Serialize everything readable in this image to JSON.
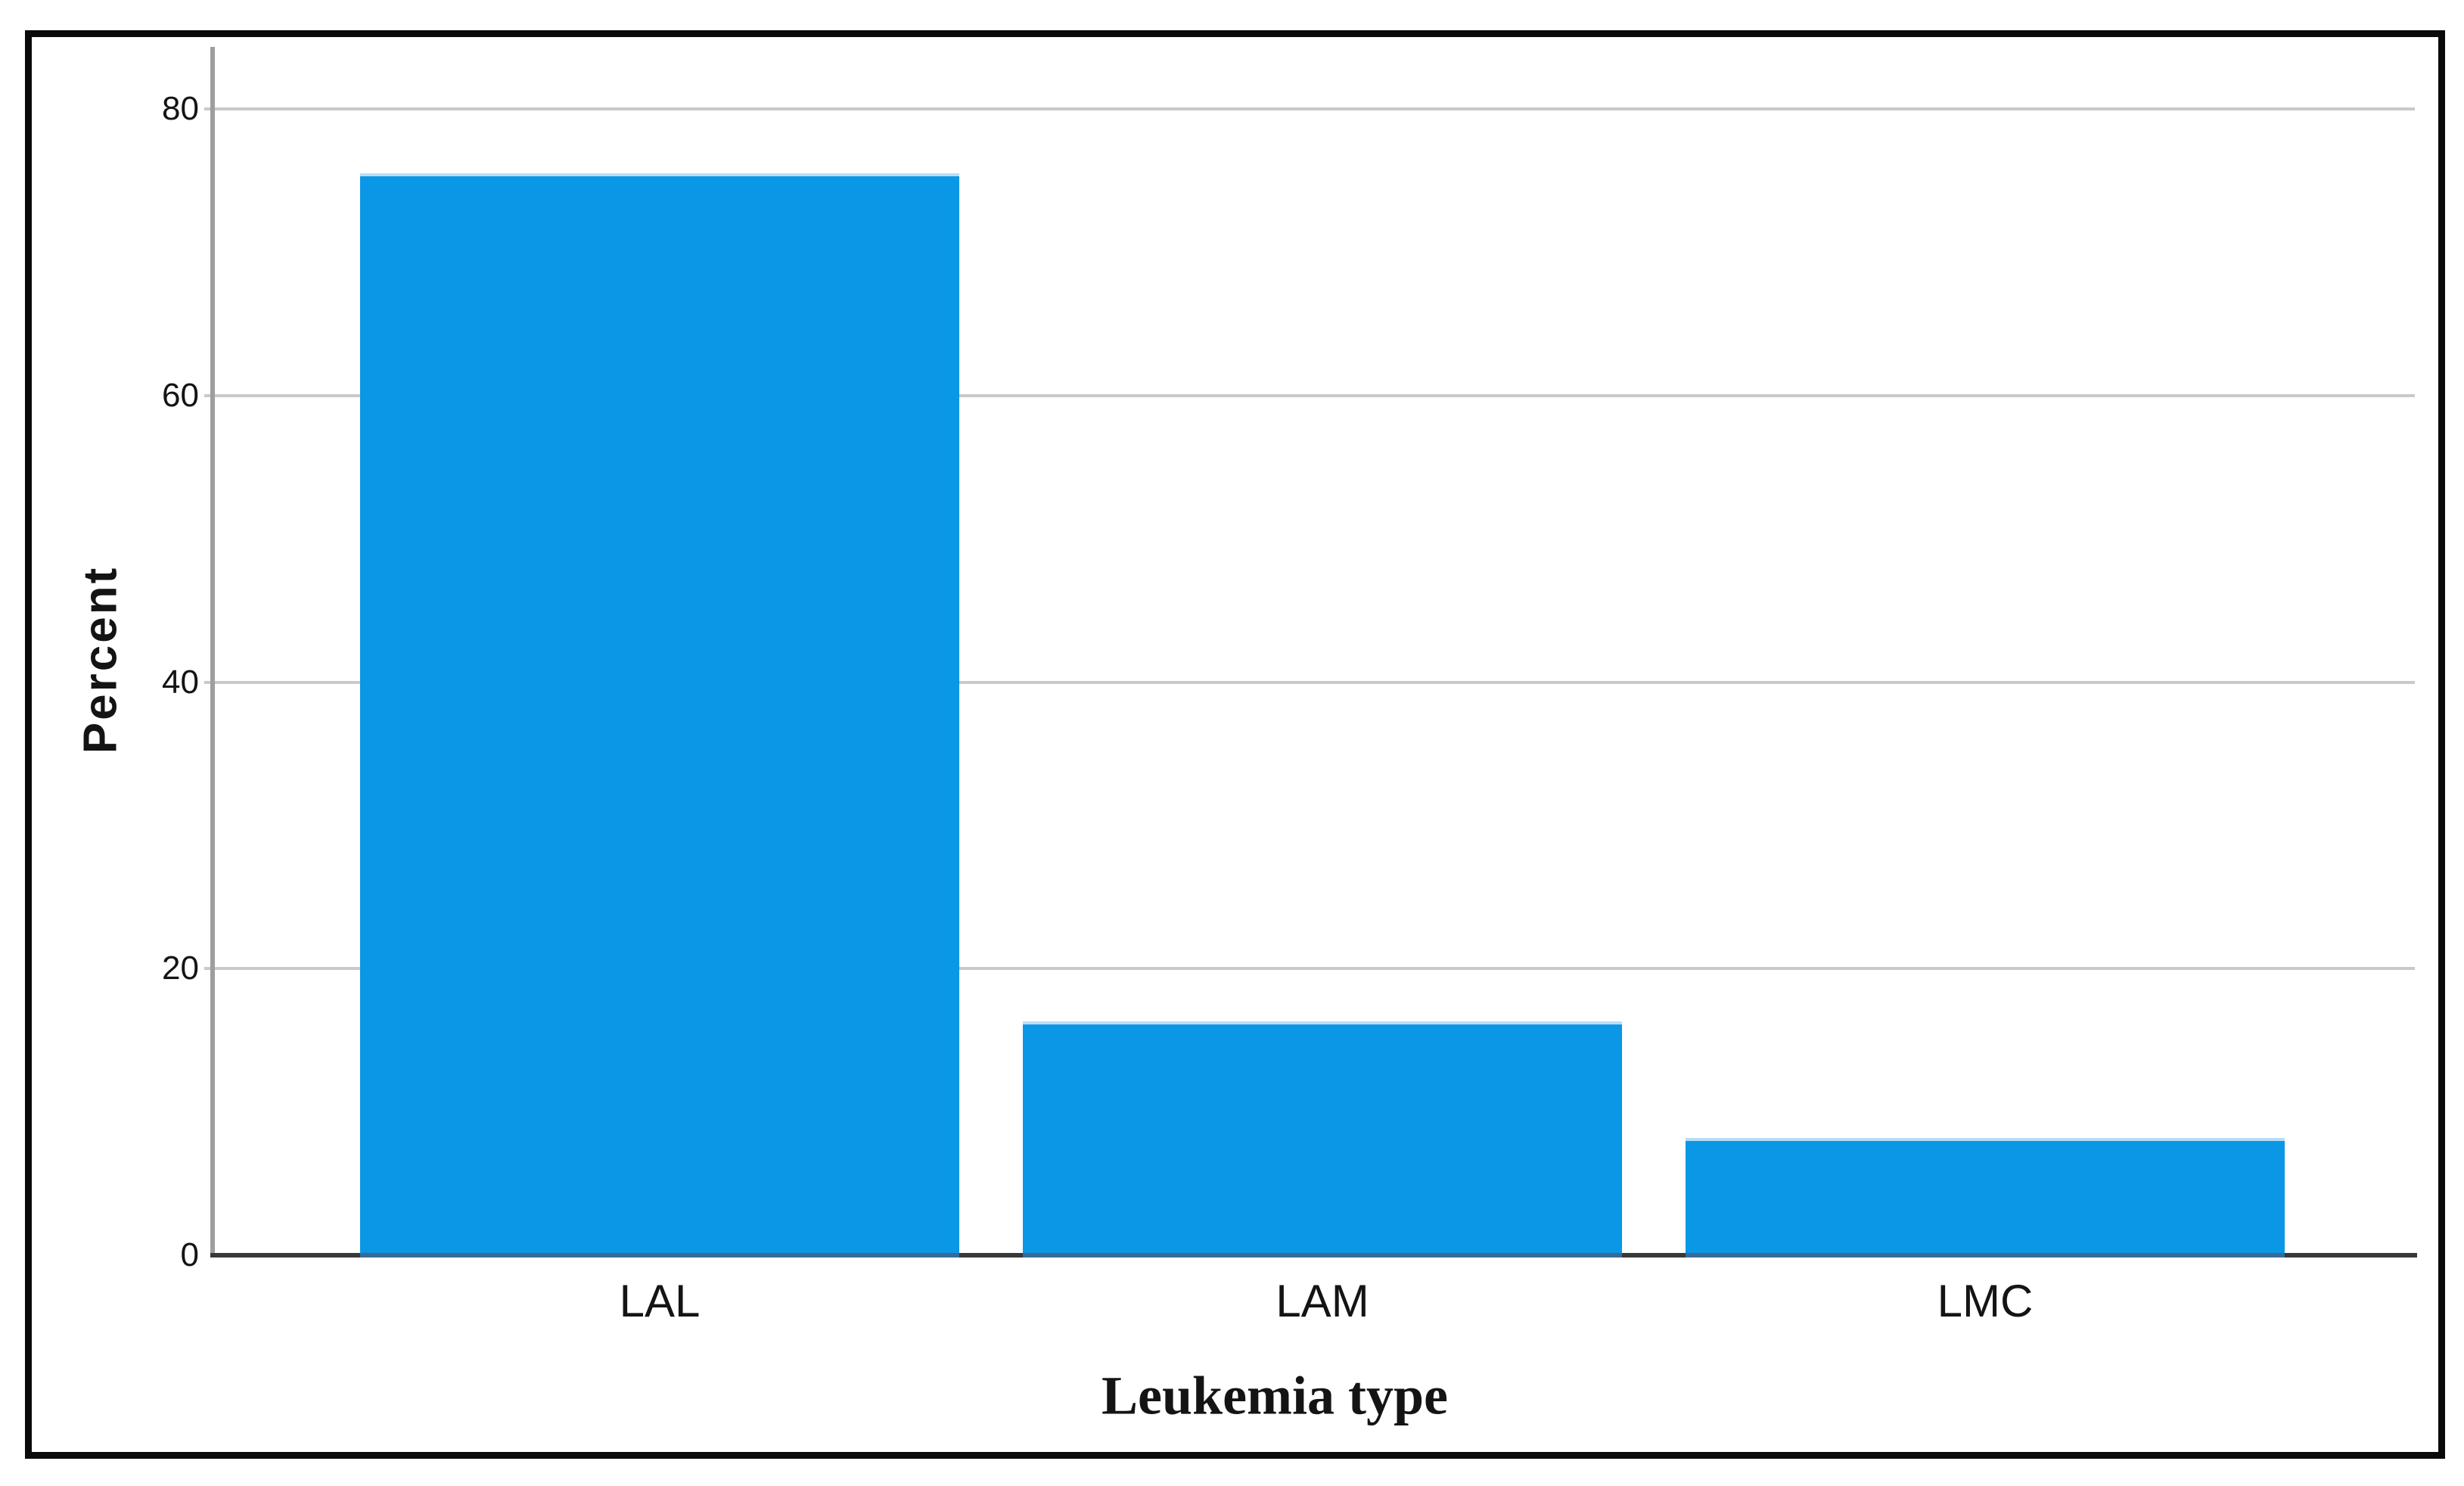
{
  "figure": {
    "background_color": "#ffffff",
    "border_color": "#0a0a0a"
  },
  "chart_data": {
    "type": "bar",
    "title": "",
    "categories": [
      "LAL",
      "LAM",
      "LMC"
    ],
    "values": [
      75.5,
      16.3,
      8.2
    ],
    "xlabel": "Leukemia type",
    "ylabel": "Percent",
    "yticks": [
      0,
      20,
      40,
      60,
      80
    ],
    "ylim": [
      0,
      84
    ],
    "grid": true,
    "legend": "none",
    "bar_color": "#0a97e6",
    "bar_top_edge_color": "#b9ddf7",
    "bar_baseline_overlap_color": "#3a6a94",
    "gridline_color": "#c9c9c9",
    "y_axis_color": "#9e9e9e",
    "x_axis_color": "#383838",
    "text_color": "#141414"
  }
}
